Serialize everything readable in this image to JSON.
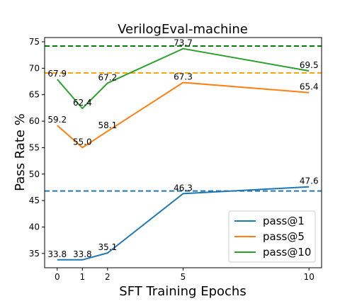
{
  "chart_data": {
    "type": "line",
    "title": "VerilogEval-machine",
    "xlabel": "SFT Training Epochs",
    "ylabel": "Pass Rate %",
    "x": [
      0,
      1,
      2,
      5,
      10
    ],
    "xticks": [
      "0",
      "1",
      "2",
      "5",
      "10"
    ],
    "yticks": [
      "35",
      "40",
      "45",
      "50",
      "55",
      "60",
      "65",
      "70",
      "75"
    ],
    "xlim": [
      -0.5,
      10.5
    ],
    "ylim": [
      32.3,
      75.8
    ],
    "grid": false,
    "legend_position": "lower-right",
    "series": [
      {
        "name": "pass@1",
        "color": "#1f77b4",
        "values": [
          33.8,
          33.8,
          35.1,
          46.3,
          47.6
        ],
        "labels": [
          "33.8",
          "33.8",
          "35.1",
          "46.3",
          "47.6"
        ],
        "reference_line": 46.8
      },
      {
        "name": "pass@5",
        "color": "#ff7f0e",
        "values": [
          59.2,
          55.0,
          58.1,
          67.3,
          65.4
        ],
        "labels": [
          "59.2",
          "55.0",
          "58.1",
          "67.3",
          "65.4"
        ],
        "reference_line": 69.1
      },
      {
        "name": "pass@10",
        "color": "#2ca02c",
        "values": [
          67.9,
          62.4,
          67.2,
          73.7,
          69.5
        ],
        "labels": [
          "67.9",
          "62.4",
          "67.2",
          "73.7",
          "69.5"
        ],
        "reference_line": 74.2
      }
    ],
    "reference_line_colors": [
      "#1f77b4",
      "#ffa500",
      "#008000"
    ]
  }
}
